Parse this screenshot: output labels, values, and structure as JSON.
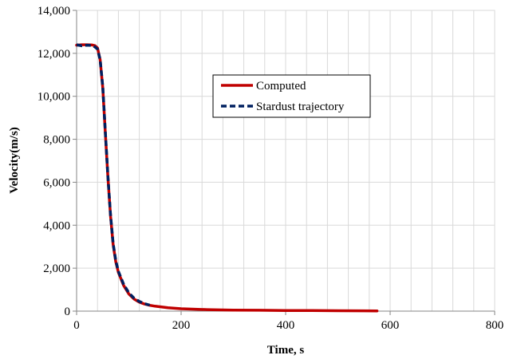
{
  "chart_data": {
    "type": "line",
    "title": "",
    "xlabel": "Time, s",
    "ylabel": "Velocity(m/s)",
    "xlim": [
      0,
      800
    ],
    "ylim": [
      0,
      14000
    ],
    "x_ticks": [
      0,
      200,
      400,
      600,
      800
    ],
    "y_ticks": [
      0,
      2000,
      4000,
      6000,
      8000,
      10000,
      12000,
      14000
    ],
    "x_tick_labels": [
      "0",
      "200",
      "400",
      "600",
      "800"
    ],
    "y_tick_labels": [
      "0",
      "2,000",
      "4,000",
      "6,000",
      "8,000",
      "10,000",
      "12,000",
      "14,000"
    ],
    "x_minor_step": 40,
    "grid": true,
    "legend_position": "upper-center-right",
    "series": [
      {
        "name": "Computed",
        "color": "#c00000",
        "style": "solid",
        "x": [
          0,
          10,
          20,
          30,
          35,
          40,
          45,
          50,
          55,
          60,
          65,
          70,
          75,
          80,
          90,
          100,
          110,
          120,
          130,
          140,
          150,
          175,
          200,
          250,
          300,
          350,
          400,
          450,
          500,
          550,
          575
        ],
        "y": [
          12380,
          12400,
          12400,
          12390,
          12360,
          12250,
          11700,
          10400,
          8300,
          6200,
          4400,
          3100,
          2300,
          1800,
          1200,
          800,
          560,
          420,
          330,
          270,
          230,
          160,
          110,
          70,
          50,
          40,
          30,
          25,
          20,
          15,
          10
        ]
      },
      {
        "name": "Stardust trajectory",
        "color": "#002060",
        "style": "dashed",
        "x": [
          0,
          10,
          20,
          30,
          35,
          40,
          45,
          50,
          55,
          60,
          65,
          70,
          75,
          80,
          90,
          100,
          110,
          120,
          130,
          140
        ],
        "y": [
          12400,
          12350,
          12380,
          12370,
          12300,
          12200,
          11700,
          10450,
          8350,
          6250,
          4450,
          3150,
          2350,
          1850,
          1250,
          850,
          600,
          450,
          350,
          280
        ]
      }
    ]
  }
}
